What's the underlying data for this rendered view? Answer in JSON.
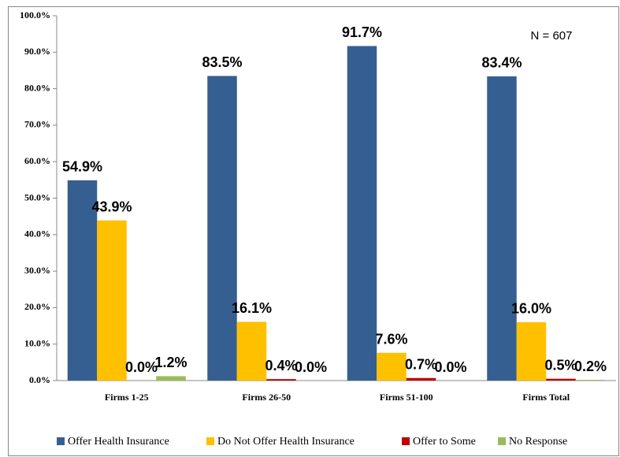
{
  "chart_data": {
    "type": "bar",
    "annotation": "N = 607",
    "categories": [
      "Firms 1-25",
      "Firms 26-50",
      "Firms 51-100",
      "Firms Total"
    ],
    "series": [
      {
        "name": "Offer Health Insurance",
        "color": "#365f91",
        "values": [
          54.9,
          83.5,
          91.7,
          83.4
        ],
        "value_labels": [
          "54.9%",
          "83.5%",
          "91.7%",
          "83.4%"
        ]
      },
      {
        "name": "Do Not Offer Health Insurance",
        "color": "#ffc000",
        "values": [
          43.9,
          16.1,
          7.6,
          16.0
        ],
        "value_labels": [
          "43.9%",
          "16.1%",
          "7.6%",
          "16.0%"
        ]
      },
      {
        "name": "Offer to Some",
        "color": "#c00000",
        "values": [
          0.0,
          0.4,
          0.7,
          0.5
        ],
        "value_labels": [
          "0.0%",
          "0.4%",
          "0.7%",
          "0.5%"
        ]
      },
      {
        "name": "No Response",
        "color": "#9bbb59",
        "values": [
          1.2,
          0.0,
          0.0,
          0.2
        ],
        "value_labels": [
          "1.2%",
          "0.0%",
          "0.0%",
          "0.2%"
        ]
      }
    ],
    "ylim": [
      0,
      100
    ],
    "yticks": [
      {
        "value": 0,
        "label": "0.0%"
      },
      {
        "value": 10,
        "label": "10.0%"
      },
      {
        "value": 20,
        "label": "20.0%"
      },
      {
        "value": 30,
        "label": "30.0%"
      },
      {
        "value": 40,
        "label": "40.0%"
      },
      {
        "value": 50,
        "label": "50.0%"
      },
      {
        "value": 60,
        "label": "60.0%"
      },
      {
        "value": 70,
        "label": "70.0%"
      },
      {
        "value": 80,
        "label": "80.0%"
      },
      {
        "value": 90,
        "label": "90.0%"
      },
      {
        "value": 100,
        "label": "100.0%"
      }
    ],
    "grid": false,
    "legend": "bottom"
  }
}
